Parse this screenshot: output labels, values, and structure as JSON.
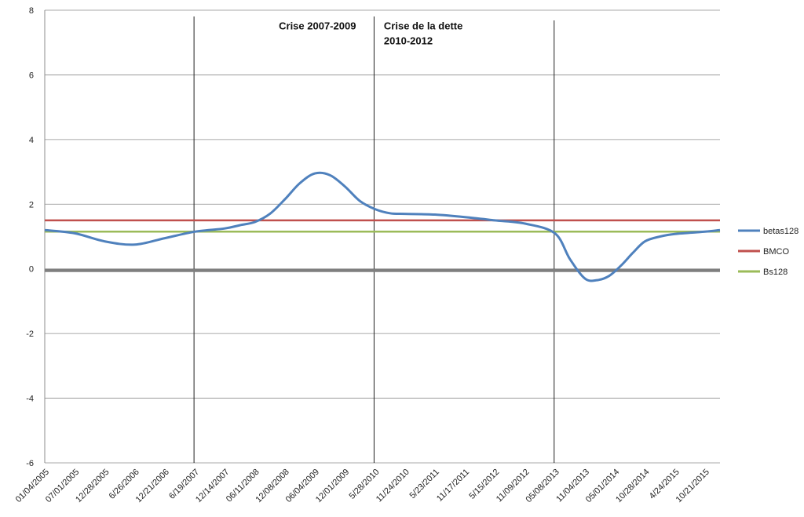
{
  "chart_data": {
    "type": "line",
    "title": "",
    "xlabel": "",
    "ylabel": "",
    "ylim": [
      -6,
      8
    ],
    "yticks": [
      -6,
      -4,
      -2,
      0,
      2,
      4,
      6,
      8
    ],
    "grid": true,
    "legend_position": "right",
    "categories": [
      "01/04/2005",
      "07/01/2005",
      "12/28/2005",
      "6/26/2006",
      "12/21/2006",
      "6/19/2007",
      "12/14/2007",
      "06/11/2008",
      "12/08/2008",
      "06/04/2009",
      "12/01/2009",
      "5/28/2010",
      "11/24/2010",
      "5/23/2011",
      "11/17/2011",
      "5/15/2012",
      "11/09/2012",
      "05/08/2013",
      "11/04/2013",
      "05/01/2014",
      "10/28/2014",
      "4/24/2015",
      "10/21/2015"
    ],
    "series": [
      {
        "name": "betas128",
        "color": "#4f81bd",
        "x": [
          0,
          1,
          2,
          3,
          4,
          5,
          6,
          6.5,
          7,
          7.5,
          8,
          8.5,
          9,
          9.5,
          10,
          10.5,
          11,
          11.5,
          12,
          13,
          14,
          15,
          16,
          17,
          17.5,
          18,
          18.4,
          18.8,
          19.2,
          19.6,
          20,
          20.5,
          21,
          22,
          22.5
        ],
        "values": [
          1.2,
          1.1,
          0.85,
          0.75,
          0.95,
          1.15,
          1.25,
          1.35,
          1.45,
          1.7,
          2.15,
          2.65,
          2.95,
          2.9,
          2.55,
          2.1,
          1.85,
          1.72,
          1.7,
          1.68,
          1.6,
          1.5,
          1.4,
          1.1,
          0.3,
          -0.3,
          -0.35,
          -0.22,
          0.1,
          0.5,
          0.85,
          1.0,
          1.08,
          1.15,
          1.2
        ]
      },
      {
        "name": "BMCO",
        "color": "#c0504d",
        "x": [
          0,
          22.5
        ],
        "values": [
          1.5,
          1.5
        ]
      },
      {
        "name": "Bs128",
        "color": "#9bbb59",
        "x": [
          0,
          22.5
        ],
        "values": [
          1.15,
          1.15
        ]
      }
    ],
    "vertical_markers": [
      5,
      11,
      17
    ],
    "annotations": [
      {
        "text": "Crise 2007-2009",
        "x": 7.8,
        "y": 7.4
      },
      {
        "text": "Crise de la dette",
        "x": 11.3,
        "y": 7.4
      },
      {
        "text": "2010-2012",
        "x": 11.3,
        "y": 6.95
      }
    ]
  }
}
